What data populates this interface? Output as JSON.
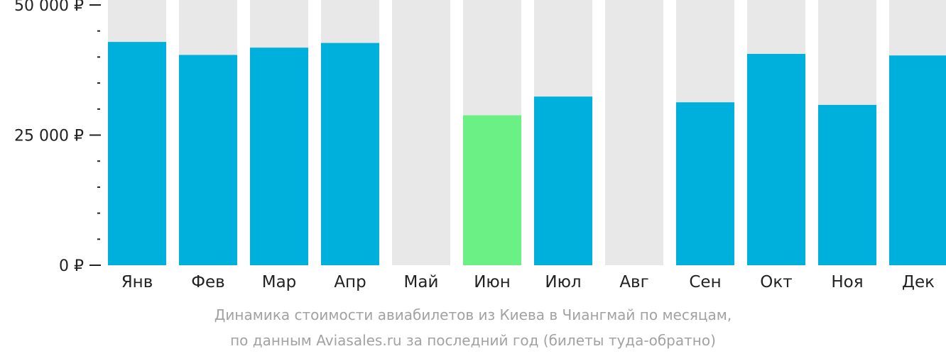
{
  "chart_data": {
    "type": "bar",
    "categories": [
      "Янв",
      "Фев",
      "Мар",
      "Апр",
      "Май",
      "Июн",
      "Июл",
      "Авг",
      "Сен",
      "Окт",
      "Ноя",
      "Дек"
    ],
    "values": [
      42900,
      40400,
      41800,
      42700,
      null,
      28800,
      32400,
      null,
      31300,
      40600,
      30800,
      40300
    ],
    "highlight_index": 5,
    "ylim": [
      0,
      50000
    ],
    "y_ticks": [
      {
        "value": 0,
        "label": "0 ₽"
      },
      {
        "value": 25000,
        "label": "25 000 ₽"
      },
      {
        "value": 50000,
        "label": "50 000 ₽"
      }
    ],
    "y_minor_step": 5000,
    "colors": {
      "bar": "#00b0dc",
      "highlight": "#6af085",
      "background_bar": "#e8e8e8",
      "axis": "#222222",
      "text": "#222222"
    }
  },
  "caption": {
    "line1": "Динамика стоимости авиабилетов из Киева в Чиангмай по месяцам,",
    "line2": "по данным Aviasales.ru за последний год (билеты туда-обратно)"
  }
}
